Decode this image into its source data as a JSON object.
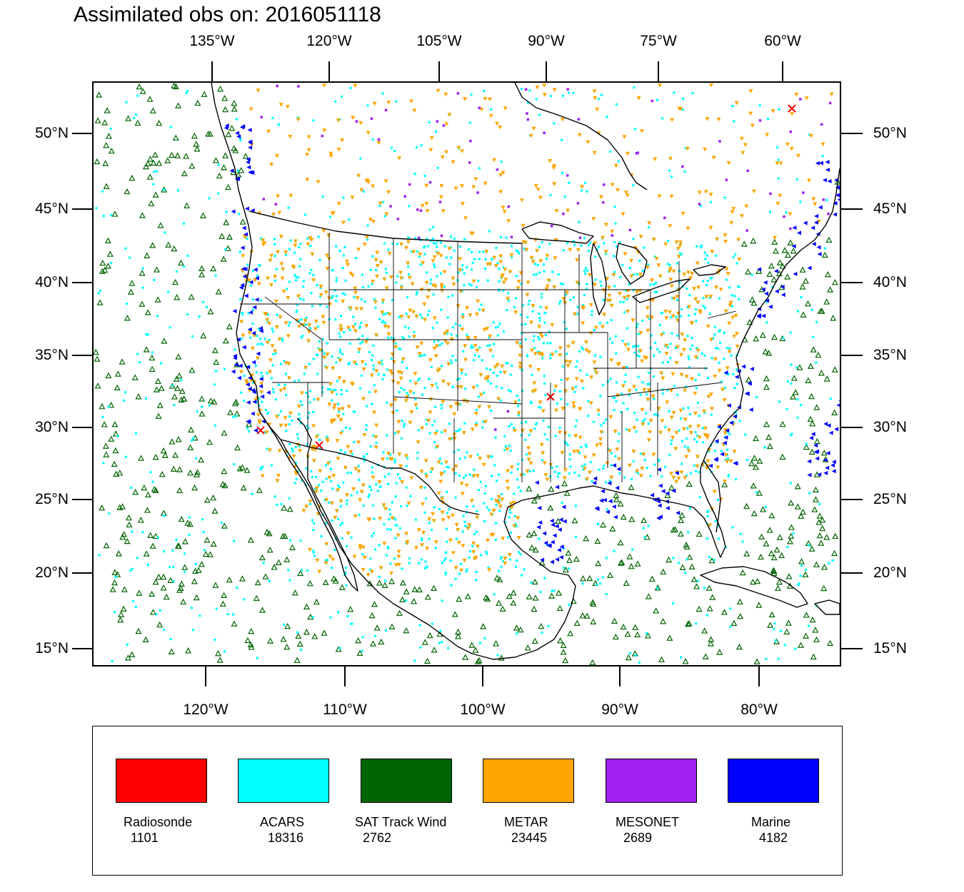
{
  "title": "Assimilated obs on: 2016051118",
  "top_axis_labels": [
    "135°W",
    "120°W",
    "105°W",
    "90°W",
    "75°W",
    "60°W"
  ],
  "bottom_axis_labels": [
    "120°W",
    "110°W",
    "100°W",
    "90°W",
    "80°W"
  ],
  "left_axis_labels": [
    "50°N",
    "45°N",
    "40°N",
    "35°N",
    "30°N",
    "25°N",
    "20°N",
    "15°N"
  ],
  "right_axis_labels": [
    "50°N",
    "45°N",
    "40°N",
    "35°N",
    "30°N",
    "25°N",
    "20°N",
    "15°N"
  ],
  "legend": [
    {
      "name": "Radiosonde",
      "count": "1101",
      "color": "#ff0000"
    },
    {
      "name": "ACARS",
      "count": "18316",
      "color": "#00ffff"
    },
    {
      "name": "SAT Track Wind",
      "count": "2762",
      "color": "#006400"
    },
    {
      "name": "METAR",
      "count": "23445",
      "color": "#ffa500"
    },
    {
      "name": "MESONET",
      "count": "2689",
      "color": "#a020f0"
    },
    {
      "name": "Marine",
      "count": "4182",
      "color": "#0000ff"
    }
  ]
}
